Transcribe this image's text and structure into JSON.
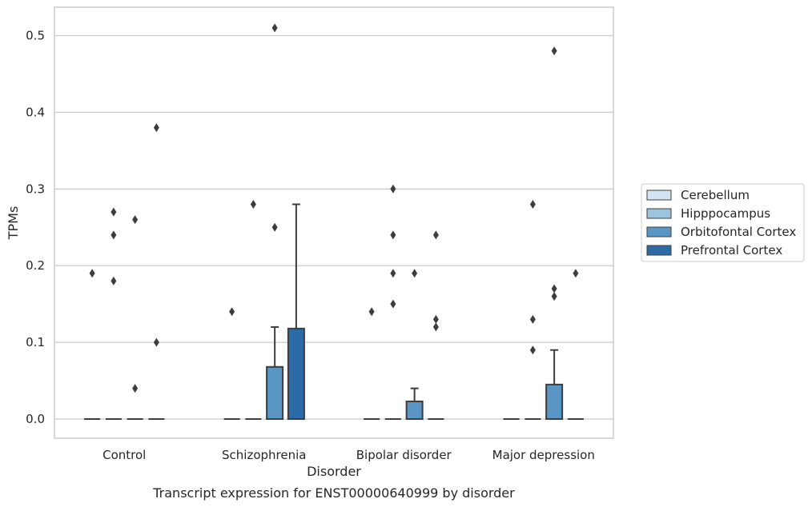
{
  "chart_data": {
    "type": "box",
    "title": "",
    "caption": "Transcript expression for ENST00000640999 by disorder",
    "xlabel": "Disorder",
    "ylabel": "TPMs",
    "ylim": [
      -0.025,
      0.537
    ],
    "yticks": [
      0.0,
      0.1,
      0.2,
      0.3,
      0.4,
      0.5
    ],
    "ytick_labels": [
      "0.0",
      "0.1",
      "0.2",
      "0.3",
      "0.4",
      "0.5"
    ],
    "grid": true,
    "legend_position": "right",
    "categories": [
      "Control",
      "Schizophrenia",
      "Bipolar disorder",
      "Major depression"
    ],
    "series": [
      {
        "name": "Cerebellum",
        "color": "#d3e3f3",
        "boxes": [
          {
            "q1": 0,
            "median": 0,
            "q3": 0,
            "whisker_low": 0,
            "whisker_high": 0,
            "outliers": [
              0.19
            ]
          },
          {
            "q1": 0,
            "median": 0,
            "q3": 0,
            "whisker_low": 0,
            "whisker_high": 0,
            "outliers": [
              0.14
            ]
          },
          {
            "q1": 0,
            "median": 0,
            "q3": 0,
            "whisker_low": 0,
            "whisker_high": 0,
            "outliers": [
              0.14
            ]
          },
          {
            "q1": 0,
            "median": 0,
            "q3": 0,
            "whisker_low": 0,
            "whisker_high": 0,
            "outliers": []
          }
        ]
      },
      {
        "name": "Hipppocampus",
        "color": "#9bc5df",
        "boxes": [
          {
            "q1": 0,
            "median": 0,
            "q3": 0,
            "whisker_low": 0,
            "whisker_high": 0,
            "outliers": [
              0.27,
              0.24,
              0.18
            ]
          },
          {
            "q1": 0,
            "median": 0,
            "q3": 0,
            "whisker_low": 0,
            "whisker_high": 0,
            "outliers": [
              0.28
            ]
          },
          {
            "q1": 0,
            "median": 0,
            "q3": 0,
            "whisker_low": 0,
            "whisker_high": 0,
            "outliers": [
              0.3,
              0.24,
              0.19,
              0.15
            ]
          },
          {
            "q1": 0,
            "median": 0,
            "q3": 0,
            "whisker_low": 0,
            "whisker_high": 0,
            "outliers": [
              0.28,
              0.13,
              0.09
            ]
          }
        ]
      },
      {
        "name": "Orbitofontal Cortex",
        "color": "#5a96c4",
        "boxes": [
          {
            "q1": 0,
            "median": 0,
            "q3": 0,
            "whisker_low": 0,
            "whisker_high": 0,
            "outliers": [
              0.26,
              0.04
            ]
          },
          {
            "q1": 0,
            "median": 0,
            "q3": 0.068,
            "whisker_low": 0,
            "whisker_high": 0.12,
            "outliers": [
              0.51,
              0.25
            ]
          },
          {
            "q1": 0,
            "median": 0,
            "q3": 0.023,
            "whisker_low": 0,
            "whisker_high": 0.04,
            "outliers": [
              0.19
            ]
          },
          {
            "q1": 0,
            "median": 0,
            "q3": 0.045,
            "whisker_low": 0,
            "whisker_high": 0.09,
            "outliers": [
              0.48,
              0.17,
              0.16
            ]
          }
        ]
      },
      {
        "name": "Prefrontal Cortex",
        "color": "#2c6aa8",
        "boxes": [
          {
            "q1": 0,
            "median": 0,
            "q3": 0,
            "whisker_low": 0,
            "whisker_high": 0,
            "outliers": [
              0.38,
              0.1
            ]
          },
          {
            "q1": 0,
            "median": 0,
            "q3": 0.118,
            "whisker_low": 0,
            "whisker_high": 0.28,
            "outliers": []
          },
          {
            "q1": 0,
            "median": 0,
            "q3": 0,
            "whisker_low": 0,
            "whisker_high": 0,
            "outliers": [
              0.24,
              0.13,
              0.12
            ]
          },
          {
            "q1": 0,
            "median": 0,
            "q3": 0,
            "whisker_low": 0,
            "whisker_high": 0,
            "outliers": [
              0.19
            ]
          }
        ]
      }
    ]
  }
}
